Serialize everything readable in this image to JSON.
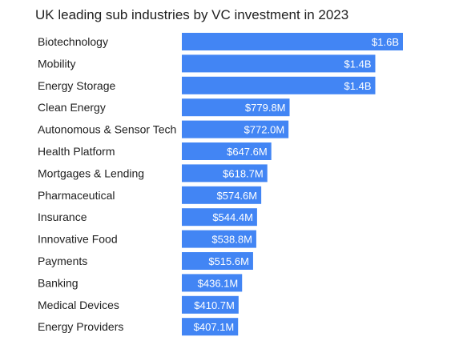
{
  "chart_data": {
    "type": "bar",
    "orientation": "horizontal",
    "title": "UK leading sub industries by VC investment in 2023",
    "xlabel": "",
    "ylabel": "",
    "unit": "USD",
    "bar_color": "#4285f4",
    "categories": [
      "Biotechnology",
      "Mobility",
      "Energy Storage",
      "Clean Energy",
      "Autonomous & Sensor Tech",
      "Health Platform",
      "Mortgages & Lending",
      "Pharmaceutical",
      "Insurance",
      "Innovative Food",
      "Payments",
      "Banking",
      "Medical Devices",
      "Energy Providers"
    ],
    "values": [
      1600,
      1400,
      1400,
      779.8,
      772.0,
      647.6,
      618.7,
      574.6,
      544.4,
      538.8,
      515.6,
      436.1,
      410.7,
      407.1
    ],
    "value_units": "millions USD",
    "value_labels": [
      "$1.6B",
      "$1.4B",
      "$1.4B",
      "$779.8M",
      "$772.0M",
      "$647.6M",
      "$618.7M",
      "$574.6M",
      "$544.4M",
      "$538.8M",
      "$515.6M",
      "$436.1M",
      "$410.7M",
      "$407.1M"
    ],
    "grid": false,
    "legend": "none"
  }
}
